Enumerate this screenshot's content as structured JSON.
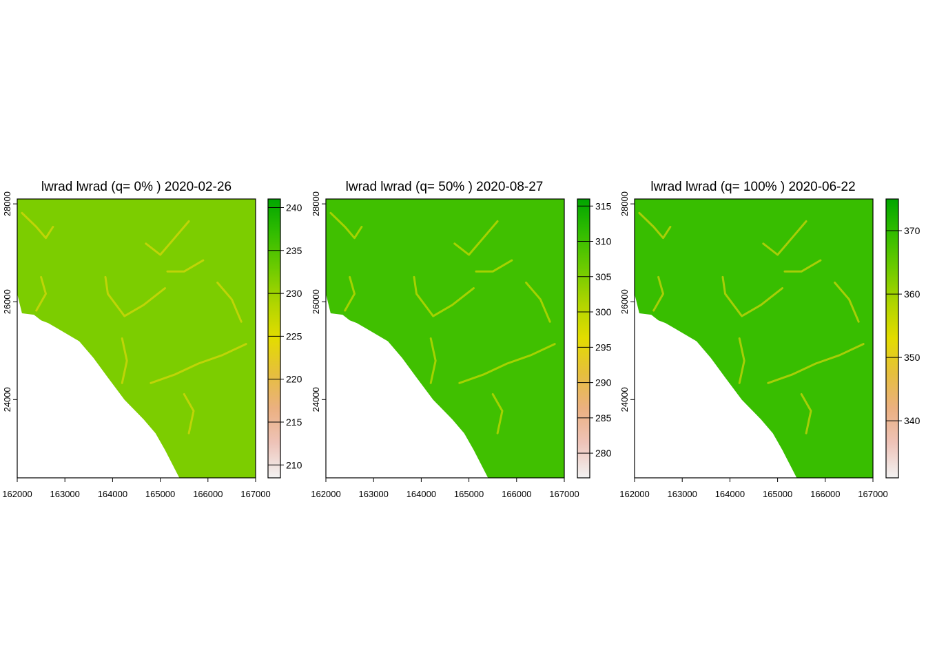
{
  "colors": {
    "background": "#ffffff",
    "axis": "#000000",
    "ramp": [
      "#f2f2f2",
      "#eec3b8",
      "#ebb080",
      "#e6bf3c",
      "#e3dc00",
      "#b0d500",
      "#6ecb00",
      "#33bd00",
      "#00a600"
    ]
  },
  "chart_data": [
    {
      "type": "heatmap",
      "title": "lwrad lwrad (q= 0% ) 2020-02-26",
      "xlabel": "",
      "ylabel": "",
      "x_ticks": [
        "162000",
        "163000",
        "164000",
        "165000",
        "166000",
        "167000"
      ],
      "y_ticks": [
        "24000",
        "26000",
        "28000"
      ],
      "xlim": [
        162000,
        167000
      ],
      "ylim": [
        22400,
        28100
      ],
      "colorbar": {
        "ticks": [
          "210",
          "215",
          "220",
          "225",
          "230",
          "235",
          "240"
        ],
        "range": [
          208.5,
          241
        ]
      },
      "base_value": 232,
      "channel_value": 224
    },
    {
      "type": "heatmap",
      "title": "lwrad lwrad (q= 50% ) 2020-08-27",
      "xlabel": "",
      "ylabel": "",
      "x_ticks": [
        "162000",
        "163000",
        "164000",
        "165000",
        "166000",
        "167000"
      ],
      "y_ticks": [
        "24000",
        "26000",
        "28000"
      ],
      "xlim": [
        162000,
        167000
      ],
      "ylim": [
        22400,
        28100
      ],
      "colorbar": {
        "ticks": [
          "280",
          "285",
          "290",
          "295",
          "300",
          "305",
          "310",
          "315"
        ],
        "range": [
          276.5,
          316
        ]
      },
      "base_value": 310,
      "channel_value": 297
    },
    {
      "type": "heatmap",
      "title": "lwrad lwrad (q= 100% ) 2020-06-22",
      "xlabel": "",
      "ylabel": "",
      "x_ticks": [
        "162000",
        "163000",
        "164000",
        "165000",
        "166000",
        "167000"
      ],
      "y_ticks": [
        "24000",
        "26000",
        "28000"
      ],
      "xlim": [
        162000,
        167000
      ],
      "ylim": [
        22400,
        28100
      ],
      "colorbar": {
        "ticks": [
          "340",
          "350",
          "360",
          "370"
        ],
        "range": [
          331,
          375
        ]
      },
      "base_value": 369,
      "channel_value": 352
    }
  ]
}
